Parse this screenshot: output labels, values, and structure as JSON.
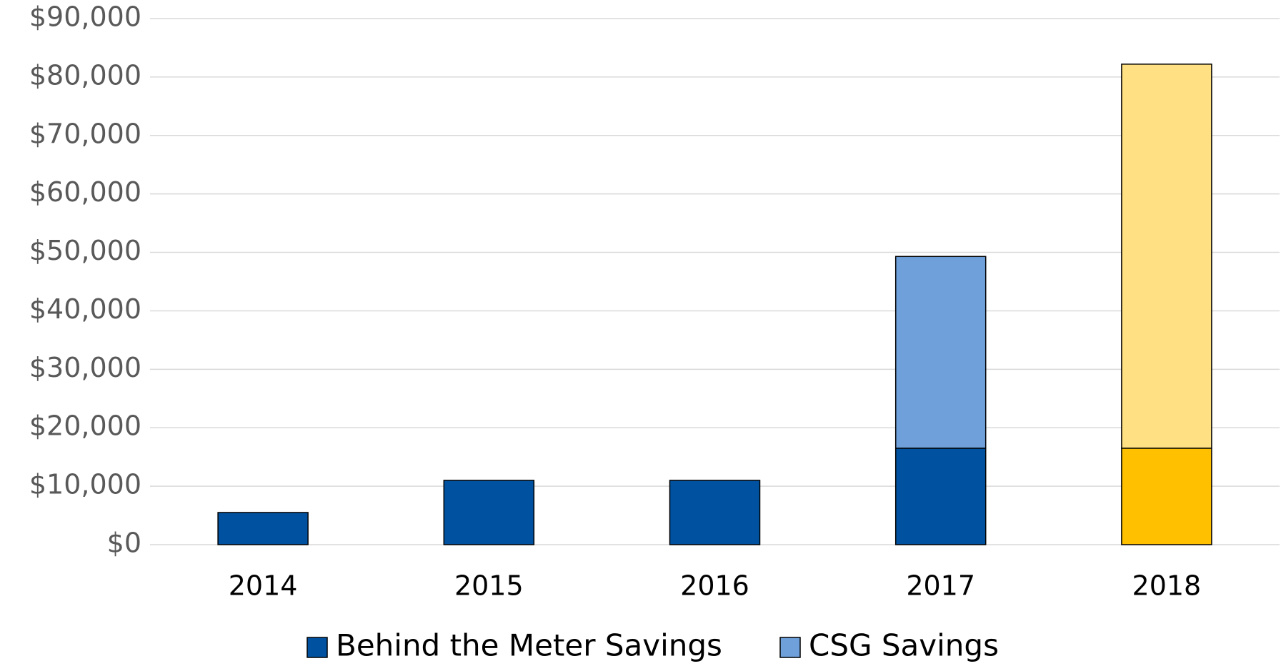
{
  "chart_data": {
    "type": "stacked-bar",
    "categories": [
      "2014",
      "2015",
      "2016",
      "2017",
      "2018"
    ],
    "series": [
      {
        "name": "Behind the Meter Savings",
        "color": "#0052a0",
        "colors": [
          "#0052a0",
          "#0052a0",
          "#0052a0",
          "#0052a0",
          "#ffc000"
        ],
        "values": [
          5500,
          11000,
          11000,
          16500,
          16500
        ]
      },
      {
        "name": "CSG Savings",
        "color": "#6fa0da",
        "colors": [
          "#6fa0da",
          "#6fa0da",
          "#6fa0da",
          "#6fa0da",
          "#ffe083"
        ],
        "values": [
          null,
          null,
          null,
          32800,
          65700
        ]
      }
    ],
    "ylim": [
      0,
      90000
    ],
    "yticks": [
      {
        "value": 0,
        "label": "$0"
      },
      {
        "value": 10000,
        "label": "$10,000"
      },
      {
        "value": 20000,
        "label": "$20,000"
      },
      {
        "value": 30000,
        "label": "$30,000"
      },
      {
        "value": 40000,
        "label": "$40,000"
      },
      {
        "value": 50000,
        "label": "$50,000"
      },
      {
        "value": 60000,
        "label": "$60,000"
      },
      {
        "value": 70000,
        "label": "$70,000"
      },
      {
        "value": 80000,
        "label": "$80,000"
      },
      {
        "value": 90000,
        "label": "$90,000"
      }
    ],
    "grid": true,
    "legend": "bottom"
  }
}
